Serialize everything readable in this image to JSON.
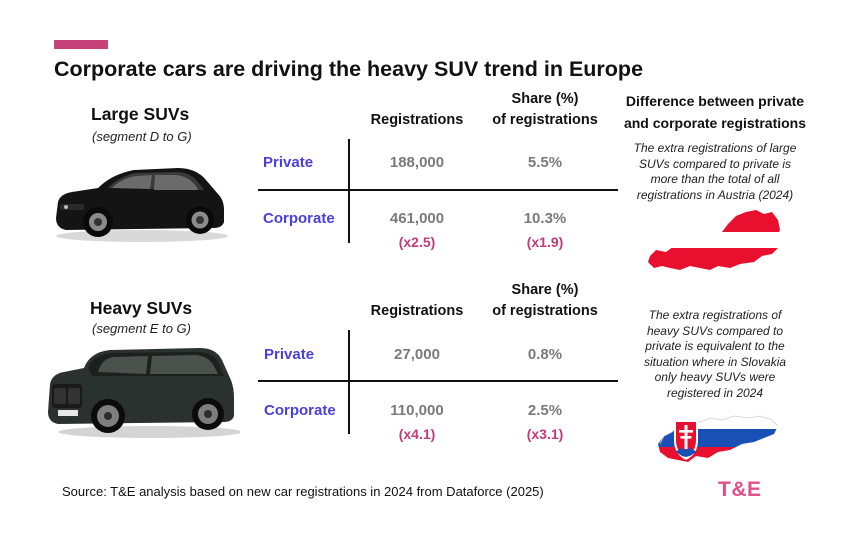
{
  "title": "Corporate cars are driving the heavy SUV trend in Europe",
  "chart_data": {
    "type": "table",
    "title": "Corporate cars are driving the heavy SUV trend in Europe",
    "columns": [
      "Registrations",
      "Share (%) of registrations"
    ],
    "column_headers": {
      "registrations": "Registrations",
      "share_line1": "Share (%)",
      "share_line2": "of registrations"
    },
    "sections": [
      {
        "title": "Large SUVs",
        "subtitle": "(segment D to G)",
        "image": "black-mercedes-suv",
        "rows": [
          {
            "label": "Private",
            "registrations": "188,000",
            "share": "5.5%",
            "registrations_value": 188000,
            "share_value": 5.5
          },
          {
            "label": "Corporate",
            "registrations": "461,000",
            "share": "10.3%",
            "registrations_value": 461000,
            "share_value": 10.3,
            "registrations_multiplier": "(x2.5)",
            "share_multiplier": "(x1.9)"
          }
        ]
      },
      {
        "title": "Heavy SUVs",
        "subtitle": "(segment E to G)",
        "image": "dark-green-bmw-suv",
        "rows": [
          {
            "label": "Private",
            "registrations": "27,000",
            "share": "0.8%",
            "registrations_value": 27000,
            "share_value": 0.8
          },
          {
            "label": "Corporate",
            "registrations": "110,000",
            "share": "2.5%",
            "registrations_value": 110000,
            "share_value": 2.5,
            "registrations_multiplier": "(x4.1)",
            "share_multiplier": "(x3.1)"
          }
        ]
      }
    ]
  },
  "right_panel": {
    "heading_line1": "Difference between private",
    "heading_line2": "and corporate registrations",
    "notes": [
      {
        "lines": [
          "The extra registrations of large",
          "SUVs compared to private is",
          "more than the total of all",
          "registrations in Austria (2024)"
        ],
        "map": "austria-flag-map",
        "colors": {
          "red": "#e8102e",
          "white": "#ffffff"
        }
      },
      {
        "lines": [
          "The extra registrations of",
          "heavy SUVs compared to",
          "private is equivalent to the",
          "situation where in Slovakia",
          "only heavy SUVs were",
          "registered  in 2024"
        ],
        "map": "slovakia-flag-map",
        "colors": {
          "white": "#ffffff",
          "blue": "#1a4fb5",
          "red": "#e8102e"
        }
      }
    ]
  },
  "source": "Source: T&E analysis based on new car registrations in 2024 from Dataforce (2025)",
  "logo": "T&E",
  "colors": {
    "accent": "#c8427a",
    "row_label": "#4a3fdd",
    "values": "#7a7a7a",
    "multiplier": "#c23b78",
    "logo": "#e0508a"
  }
}
